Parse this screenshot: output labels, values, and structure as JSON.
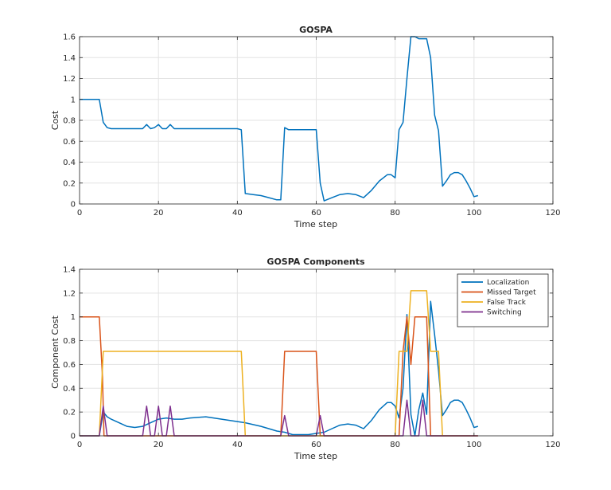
{
  "chart_data": [
    {
      "type": "line",
      "title": "GOSPA",
      "xlabel": "Time step",
      "ylabel": "Cost",
      "xlim": [
        0,
        120
      ],
      "ylim": [
        0,
        1.6
      ],
      "xticks": [
        "0",
        "20",
        "40",
        "60",
        "80",
        "100",
        "120"
      ],
      "yticks": [
        "0",
        "0.2",
        "0.4",
        "0.6",
        "0.8",
        "1",
        "1.2",
        "1.4",
        "1.6"
      ],
      "grid": true,
      "series": [
        {
          "color": "#0072BD",
          "points": [
            [
              0,
              1.0
            ],
            [
              1,
              1.0
            ],
            [
              2,
              1.0
            ],
            [
              3,
              1.0
            ],
            [
              4,
              1.0
            ],
            [
              5,
              1.0
            ],
            [
              6,
              0.78
            ],
            [
              7,
              0.73
            ],
            [
              8,
              0.72
            ],
            [
              10,
              0.72
            ],
            [
              12,
              0.72
            ],
            [
              14,
              0.72
            ],
            [
              16,
              0.72
            ],
            [
              17,
              0.76
            ],
            [
              18,
              0.72
            ],
            [
              19,
              0.73
            ],
            [
              20,
              0.76
            ],
            [
              21,
              0.72
            ],
            [
              22,
              0.72
            ],
            [
              23,
              0.76
            ],
            [
              24,
              0.72
            ],
            [
              26,
              0.72
            ],
            [
              28,
              0.72
            ],
            [
              30,
              0.72
            ],
            [
              32,
              0.72
            ],
            [
              34,
              0.72
            ],
            [
              36,
              0.72
            ],
            [
              38,
              0.72
            ],
            [
              40,
              0.72
            ],
            [
              41,
              0.71
            ],
            [
              42,
              0.1
            ],
            [
              44,
              0.09
            ],
            [
              46,
              0.08
            ],
            [
              48,
              0.06
            ],
            [
              50,
              0.04
            ],
            [
              51,
              0.04
            ],
            [
              52,
              0.73
            ],
            [
              53,
              0.71
            ],
            [
              55,
              0.71
            ],
            [
              57,
              0.71
            ],
            [
              59,
              0.71
            ],
            [
              60,
              0.71
            ],
            [
              61,
              0.2
            ],
            [
              62,
              0.03
            ],
            [
              64,
              0.06
            ],
            [
              66,
              0.09
            ],
            [
              68,
              0.1
            ],
            [
              70,
              0.09
            ],
            [
              72,
              0.06
            ],
            [
              74,
              0.13
            ],
            [
              76,
              0.22
            ],
            [
              78,
              0.28
            ],
            [
              79,
              0.28
            ],
            [
              80,
              0.25
            ],
            [
              81,
              0.71
            ],
            [
              82,
              0.78
            ],
            [
              83,
              1.2
            ],
            [
              84,
              1.6
            ],
            [
              85,
              1.6
            ],
            [
              86,
              1.58
            ],
            [
              87,
              1.58
            ],
            [
              88,
              1.58
            ],
            [
              89,
              1.4
            ],
            [
              90,
              0.85
            ],
            [
              91,
              0.7
            ],
            [
              92,
              0.17
            ],
            [
              93,
              0.22
            ],
            [
              94,
              0.28
            ],
            [
              95,
              0.3
            ],
            [
              96,
              0.3
            ],
            [
              97,
              0.28
            ],
            [
              98,
              0.22
            ],
            [
              99,
              0.15
            ],
            [
              100,
              0.07
            ],
            [
              101,
              0.08
            ]
          ]
        }
      ]
    },
    {
      "type": "line",
      "title": "GOSPA Components",
      "xlabel": "Time step",
      "ylabel": "Component Cost",
      "xlim": [
        0,
        120
      ],
      "ylim": [
        0,
        1.4
      ],
      "xticks": [
        "0",
        "20",
        "40",
        "60",
        "80",
        "100",
        "120"
      ],
      "yticks": [
        "0",
        "0.2",
        "0.4",
        "0.6",
        "0.8",
        "1",
        "1.2",
        "1.4"
      ],
      "grid": true,
      "legend_position": "top-right",
      "series": [
        {
          "name": "Localization",
          "color": "#0072BD",
          "points": [
            [
              0,
              0
            ],
            [
              5,
              0
            ],
            [
              6,
              0.2
            ],
            [
              7,
              0.16
            ],
            [
              8,
              0.14
            ],
            [
              10,
              0.11
            ],
            [
              12,
              0.08
            ],
            [
              14,
              0.07
            ],
            [
              16,
              0.08
            ],
            [
              18,
              0.11
            ],
            [
              20,
              0.14
            ],
            [
              22,
              0.15
            ],
            [
              24,
              0.14
            ],
            [
              26,
              0.14
            ],
            [
              28,
              0.15
            ],
            [
              32,
              0.16
            ],
            [
              36,
              0.14
            ],
            [
              40,
              0.12
            ],
            [
              42,
              0.11
            ],
            [
              46,
              0.08
            ],
            [
              50,
              0.04
            ],
            [
              52,
              0.03
            ],
            [
              54,
              0.01
            ],
            [
              58,
              0.01
            ],
            [
              60,
              0.02
            ],
            [
              62,
              0.03
            ],
            [
              64,
              0.06
            ],
            [
              66,
              0.09
            ],
            [
              68,
              0.1
            ],
            [
              70,
              0.09
            ],
            [
              72,
              0.06
            ],
            [
              74,
              0.13
            ],
            [
              76,
              0.22
            ],
            [
              78,
              0.28
            ],
            [
              79,
              0.28
            ],
            [
              80,
              0.25
            ],
            [
              81,
              0.15
            ],
            [
              82,
              0.4
            ],
            [
              83,
              1.02
            ],
            [
              84,
              0.18
            ],
            [
              85,
              0.0
            ],
            [
              86,
              0.22
            ],
            [
              87,
              0.36
            ],
            [
              88,
              0.18
            ],
            [
              89,
              1.13
            ],
            [
              90,
              0.85
            ],
            [
              91,
              0.55
            ],
            [
              92,
              0.17
            ],
            [
              93,
              0.22
            ],
            [
              94,
              0.28
            ],
            [
              95,
              0.3
            ],
            [
              96,
              0.3
            ],
            [
              97,
              0.28
            ],
            [
              98,
              0.22
            ],
            [
              99,
              0.15
            ],
            [
              100,
              0.07
            ],
            [
              101,
              0.08
            ]
          ]
        },
        {
          "name": "Missed Target",
          "color": "#D95319",
          "points": [
            [
              0,
              1.0
            ],
            [
              5,
              1.0
            ],
            [
              5.8,
              0.5
            ],
            [
              6.2,
              0
            ],
            [
              51,
              0
            ],
            [
              52,
              0.71
            ],
            [
              60,
              0.71
            ],
            [
              61,
              0
            ],
            [
              80,
              0
            ],
            [
              81,
              0.0
            ],
            [
              82,
              0.71
            ],
            [
              83,
              1.0
            ],
            [
              84,
              0.6
            ],
            [
              85,
              1.0
            ],
            [
              88,
              1.0
            ],
            [
              89,
              0
            ],
            [
              101,
              0
            ]
          ]
        },
        {
          "name": "False Track",
          "color": "#EDB120",
          "points": [
            [
              0,
              0
            ],
            [
              5,
              0
            ],
            [
              6,
              0.71
            ],
            [
              41,
              0.71
            ],
            [
              42,
              0
            ],
            [
              80,
              0
            ],
            [
              81,
              0.71
            ],
            [
              83,
              0.71
            ],
            [
              84,
              1.22
            ],
            [
              88,
              1.22
            ],
            [
              89,
              0.71
            ],
            [
              91,
              0.71
            ],
            [
              92,
              0
            ],
            [
              101,
              0
            ]
          ]
        },
        {
          "name": "Switching",
          "color": "#7E2F8E",
          "points": [
            [
              0,
              0
            ],
            [
              5,
              0
            ],
            [
              6,
              0.25
            ],
            [
              7,
              0
            ],
            [
              16,
              0
            ],
            [
              17,
              0.25
            ],
            [
              18,
              0
            ],
            [
              19,
              0
            ],
            [
              20,
              0.25
            ],
            [
              21,
              0
            ],
            [
              22,
              0
            ],
            [
              23,
              0.25
            ],
            [
              24,
              0
            ],
            [
              51,
              0
            ],
            [
              52,
              0.17
            ],
            [
              53,
              0
            ],
            [
              60,
              0
            ],
            [
              61,
              0.17
            ],
            [
              62,
              0
            ],
            [
              82,
              0
            ],
            [
              83,
              0.3
            ],
            [
              84,
              0
            ],
            [
              86,
              0
            ],
            [
              87,
              0.3
            ],
            [
              88,
              0
            ],
            [
              89,
              0
            ],
            [
              101,
              0
            ]
          ]
        }
      ]
    }
  ]
}
